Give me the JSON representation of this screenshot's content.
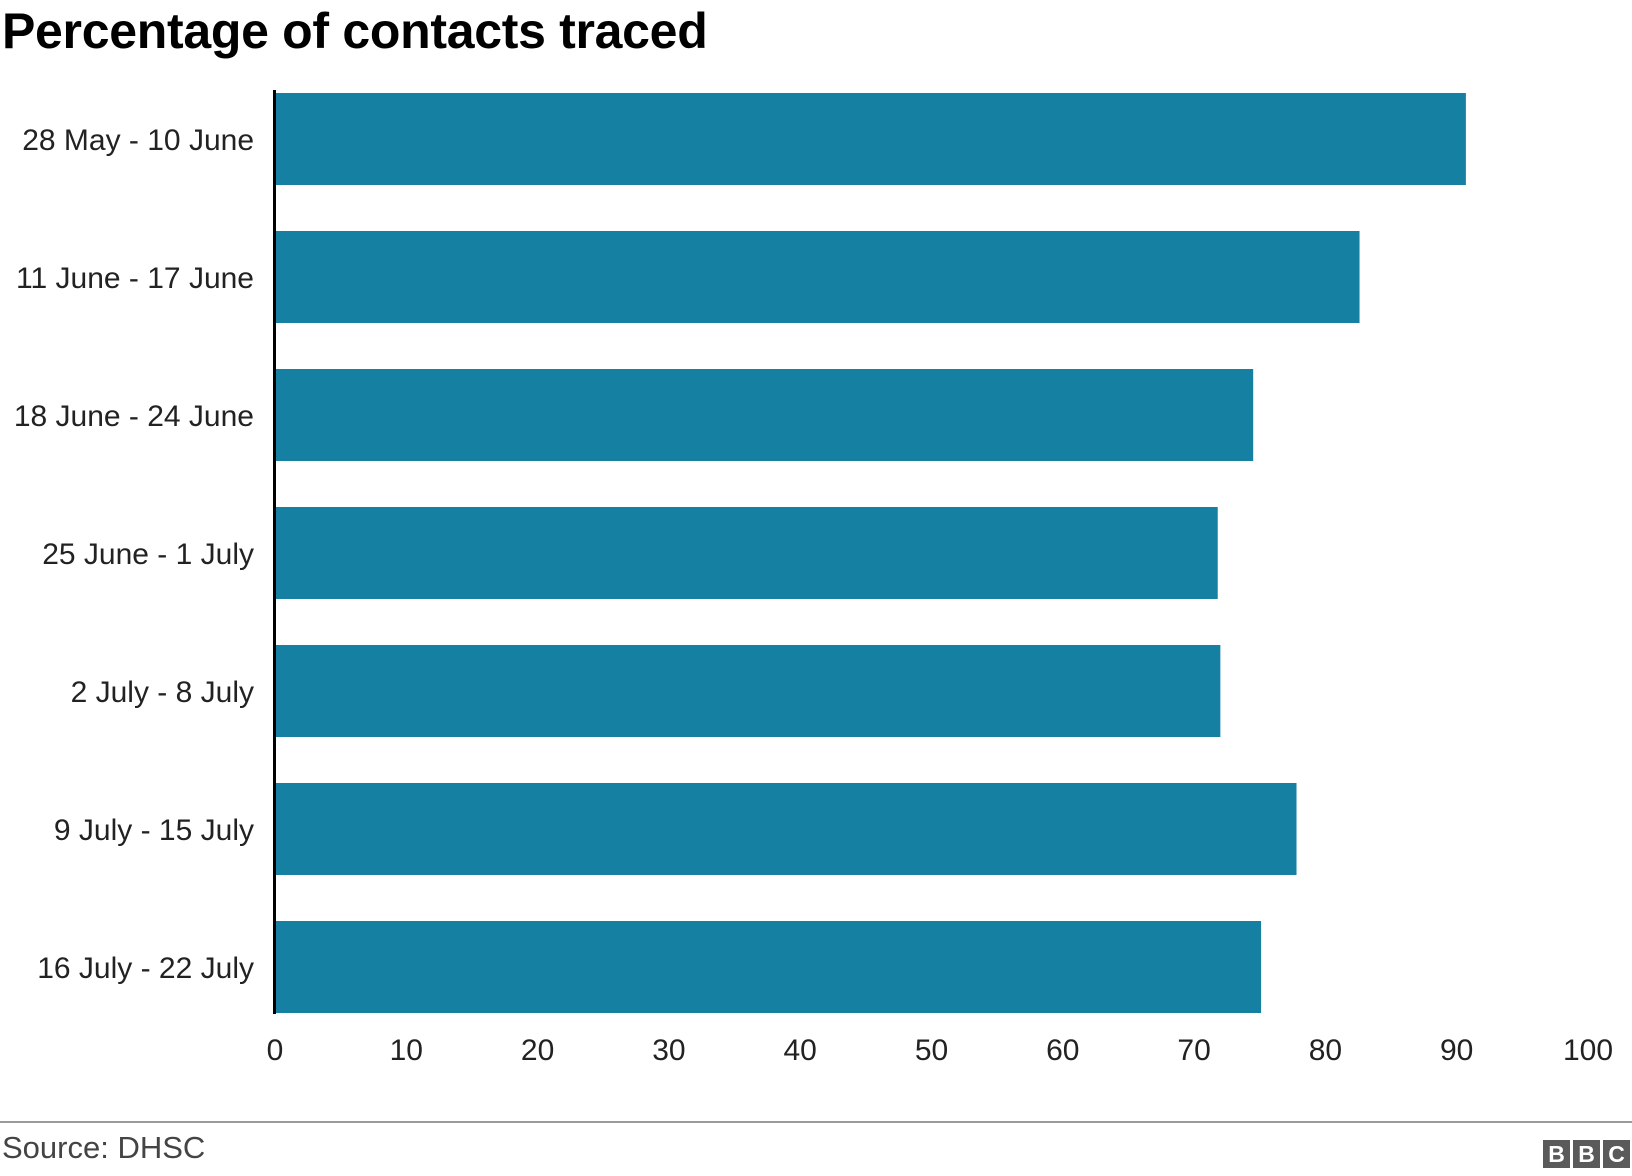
{
  "header": {
    "title": "Percentage of contacts traced"
  },
  "footer": {
    "source": "Source: DHSC",
    "logo_letters": [
      "B",
      "B",
      "C"
    ]
  },
  "colors": {
    "bar": "#1580a2",
    "axis": "#000000",
    "text": "#222222"
  },
  "chart_data": {
    "type": "bar",
    "orientation": "horizontal",
    "title": "Percentage of contacts traced",
    "xlabel": "",
    "ylabel": "",
    "categories": [
      "28 May - 10 June",
      "11 June - 17 June",
      "18 June - 24 June",
      "25 June - 1 July",
      "2 July - 8 July",
      "9 July - 15 July",
      "16 July - 22 July"
    ],
    "values": [
      90.7,
      82.6,
      74.5,
      71.8,
      72.0,
      77.8,
      75.1
    ],
    "xlim": [
      0,
      100
    ],
    "xticks": [
      0,
      10,
      20,
      30,
      40,
      50,
      60,
      70,
      80,
      90,
      100
    ],
    "grid": false,
    "legend": "none"
  }
}
